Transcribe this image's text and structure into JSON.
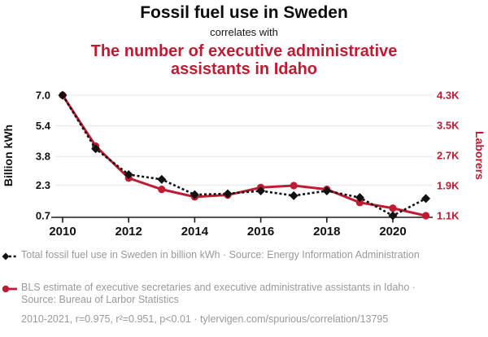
{
  "header": {
    "title": "Fossil fuel use in Sweden",
    "subtitle": "correlates with",
    "red_title": "The number of executive administrative assistants in Idaho"
  },
  "colors": {
    "accent_red": "#c01b33",
    "series_black": "#111111",
    "legend_gray": "#999999",
    "gridline_gray": "#ececec"
  },
  "chart_data": {
    "type": "line",
    "x": [
      2010,
      2011,
      2012,
      2013,
      2014,
      2015,
      2016,
      2017,
      2018,
      2019,
      2020,
      2021
    ],
    "series": [
      {
        "name": "Total fossil fuel use in Sweden",
        "unit": "billion kWh",
        "axis": "left",
        "color": "#111111",
        "line_style": "dashed",
        "marker": "diamond",
        "values": [
          7.0,
          4.2,
          2.85,
          2.6,
          1.8,
          1.85,
          2.0,
          1.75,
          2.0,
          1.65,
          0.7,
          1.6
        ]
      },
      {
        "name": "BLS estimate of executive secretaries and executive administrative assistants in Idaho",
        "unit": "laborers",
        "axis": "right",
        "color": "#c01b33",
        "line_style": "solid",
        "marker": "circle",
        "values": [
          4300,
          2950,
          2100,
          1800,
          1600,
          1650,
          1850,
          1900,
          1800,
          1450,
          1300,
          1100
        ]
      }
    ],
    "left_axis": {
      "label": "Billion kWh",
      "range": [
        0.7,
        7.0
      ],
      "ticks": [
        7.0,
        5.4,
        3.8,
        2.3,
        0.7
      ],
      "tick_labels": [
        "7.0",
        "5.4",
        "3.8",
        "2.3",
        "0.7"
      ]
    },
    "right_axis": {
      "label": "Laborers",
      "range": [
        1100,
        4300
      ],
      "ticks": [
        4300,
        3500,
        2700,
        1900,
        1100
      ],
      "tick_labels": [
        "4.3K",
        "3.5K",
        "2.7K",
        "1.9K",
        "1.1K"
      ]
    },
    "x_axis": {
      "ticks": [
        2010,
        2012,
        2014,
        2016,
        2018,
        2020
      ],
      "tick_labels": [
        "2010",
        "2012",
        "2014",
        "2016",
        "2018",
        "2020"
      ]
    },
    "grid": true,
    "legend_position": "bottom"
  },
  "legend": {
    "items": [
      {
        "marker": "black-diamond-dashed-line",
        "label": "Total fossil fuel use in Sweden in billion kWh · Source: Energy Information Administration"
      },
      {
        "marker": "red-circle-solid-line",
        "label": "BLS estimate of executive secretaries and executive administrative assistants in Idaho · Source: Bureau of Larbor Statistics"
      }
    ]
  },
  "footer": {
    "text": "2010-2021, r=0.975, r²=0.951, p<0.01 · tylervigen.com/spurious/correlation/13795"
  }
}
